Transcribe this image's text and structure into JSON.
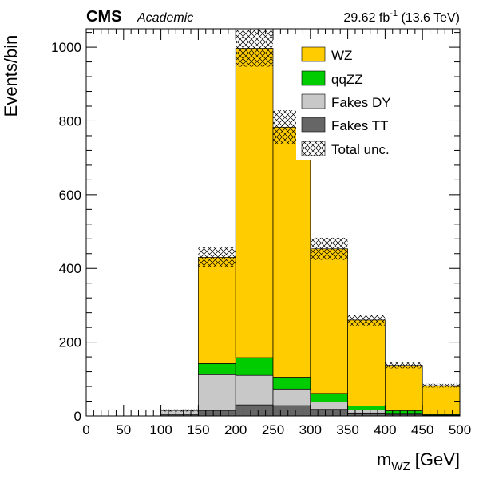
{
  "header": {
    "experiment": "CMS",
    "tag": "Academic",
    "lumi_value": "29.62 fb",
    "lumi_exp": "-1",
    "energy": " (13.6 TeV)"
  },
  "chart_data": {
    "type": "bar",
    "stacked": true,
    "title": "",
    "xlabel": "m",
    "xlabel_sub": "WZ",
    "xlabel_unit": " [GeV]",
    "ylabel": "Events/bin",
    "xlim": [
      0,
      500
    ],
    "ylim": [
      0,
      1050
    ],
    "grid": false,
    "legend_position": "top-right",
    "x_ticks": [
      0,
      50,
      100,
      150,
      200,
      250,
      300,
      350,
      400,
      450,
      500
    ],
    "y_ticks": [
      0,
      200,
      400,
      600,
      800,
      1000
    ],
    "bin_edges": [
      100,
      150,
      200,
      250,
      300,
      350,
      400,
      450,
      500
    ],
    "series": [
      {
        "name": "Fakes TT",
        "color": "#666666",
        "values": [
          3,
          15,
          30,
          28,
          18,
          8,
          4,
          2
        ]
      },
      {
        "name": "Fakes DY",
        "color": "#c8c8c8",
        "values": [
          12,
          97,
          80,
          45,
          20,
          8,
          3,
          1
        ]
      },
      {
        "name": "qqZZ",
        "color": "#00cc00",
        "values": [
          0,
          30,
          48,
          32,
          23,
          11,
          7,
          2
        ]
      },
      {
        "name": "WZ",
        "color": "#ffcc00",
        "values": [
          0,
          288,
          839,
          678,
          392,
          233,
          123,
          77
        ]
      }
    ],
    "total_uncertainty": {
      "name": "Total unc.",
      "values": [
        3,
        27,
        50,
        46,
        30,
        15,
        8,
        5
      ]
    }
  }
}
